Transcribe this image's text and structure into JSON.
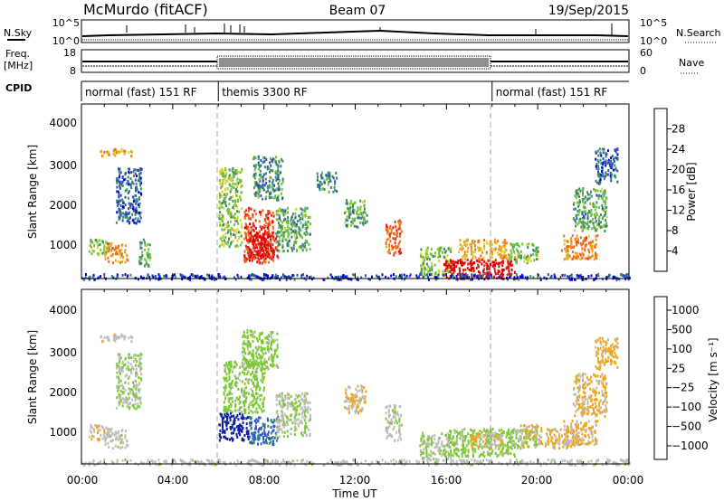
{
  "header": {
    "station": "McMurdo (fitACF)",
    "beam": "Beam 07",
    "date": "19/Sep/2015"
  },
  "summary_panel": {
    "nsky_label": "N.Sky",
    "nsky_ticks": [
      "10^5",
      "10^0"
    ],
    "nsearch_label": "N.Search",
    "nsearch_ticks": [
      "10^5",
      "10^0"
    ],
    "freq_label": "Freq.",
    "freq_unit": "[MHz]",
    "freq_ticks": [
      "18",
      "8"
    ],
    "nave_label": "Nave",
    "nave_ticks": [
      "60",
      "0"
    ],
    "cpid_label": "CPID",
    "cpid_segments": [
      {
        "label": "normal (fast) 151 RF",
        "start_hour": 0,
        "end_hour": 6
      },
      {
        "label": "themis 3300 RF",
        "start_hour": 6,
        "end_hour": 18
      },
      {
        "label": "normal (fast) 151 RF",
        "start_hour": 18,
        "end_hour": 24
      }
    ]
  },
  "axes": {
    "ylabel": "Slant Range [km]",
    "yticks": [
      "1000",
      "2000",
      "3000",
      "4000"
    ],
    "xlabel": "Time UT",
    "xticks": [
      "00:00",
      "04:00",
      "08:00",
      "12:00",
      "16:00",
      "20:00",
      "00:00"
    ]
  },
  "power_colorbar": {
    "label": "Power [dB]",
    "ticks": [
      "4",
      "8",
      "12",
      "16",
      "20",
      "24",
      "28"
    ],
    "colors": [
      "#0000e6",
      "#2b50b5",
      "#3c8a6e",
      "#6fc23a",
      "#d9d62a",
      "#f0a020",
      "#f06a14",
      "#e8281c",
      "#dd0000"
    ]
  },
  "velocity_colorbar": {
    "label": "Velocity [m s⁻¹]",
    "ticks": [
      "1000",
      "500",
      "100",
      "25",
      "−25",
      "−100",
      "−500",
      "−1000"
    ],
    "colors": [
      "#0a1fa0",
      "#2d56c0",
      "#3a8a6a",
      "#7cc832",
      "#bdbdbd",
      "#f0a418",
      "#f06a14",
      "#e82818",
      "#d40000"
    ]
  },
  "chart_data": [
    {
      "type": "heatmap",
      "title": "Power",
      "xlabel": "Time UT",
      "ylabel": "Slant Range [km]",
      "xlim": [
        0,
        24
      ],
      "ylim": [
        180,
        4600
      ],
      "colorbar_range": [
        0,
        30
      ],
      "regions": [
        {
          "t0": 0.8,
          "t1": 2.2,
          "r0": 3300,
          "r1": 3500,
          "value": 18
        },
        {
          "t0": 0.3,
          "t1": 1.2,
          "r0": 800,
          "r1": 1200,
          "value": 12
        },
        {
          "t0": 1.0,
          "t1": 2.0,
          "r0": 600,
          "r1": 1100,
          "value": 20
        },
        {
          "t0": 1.5,
          "t1": 2.6,
          "r0": 1600,
          "r1": 3000,
          "value": 6
        },
        {
          "t0": 2.5,
          "t1": 3.0,
          "r0": 500,
          "r1": 1200,
          "value": 10
        },
        {
          "t0": 6.0,
          "t1": 7.0,
          "r0": 1000,
          "r1": 3000,
          "value": 12
        },
        {
          "t0": 7.1,
          "t1": 8.4,
          "r0": 600,
          "r1": 2000,
          "value": 24
        },
        {
          "t0": 7.3,
          "t1": 8.6,
          "r0": 700,
          "r1": 1400,
          "value": 28
        },
        {
          "t0": 7.5,
          "t1": 8.8,
          "r0": 2200,
          "r1": 3300,
          "value": 8
        },
        {
          "t0": 8.5,
          "t1": 10.0,
          "r0": 900,
          "r1": 2000,
          "value": 10
        },
        {
          "t0": 10.3,
          "t1": 11.2,
          "r0": 2400,
          "r1": 2900,
          "value": 8
        },
        {
          "t0": 11.5,
          "t1": 12.5,
          "r0": 1500,
          "r1": 2200,
          "value": 10
        },
        {
          "t0": 13.3,
          "t1": 14.0,
          "r0": 800,
          "r1": 1700,
          "value": 22
        },
        {
          "t0": 14.8,
          "t1": 16.2,
          "r0": 300,
          "r1": 1000,
          "value": 12
        },
        {
          "t0": 15.8,
          "t1": 19.0,
          "r0": 200,
          "r1": 700,
          "value": 28
        },
        {
          "t0": 16.5,
          "t1": 18.7,
          "r0": 700,
          "r1": 1200,
          "value": 18
        },
        {
          "t0": 18.7,
          "t1": 20.0,
          "r0": 600,
          "r1": 1100,
          "value": 12
        },
        {
          "t0": 21.0,
          "t1": 22.6,
          "r0": 700,
          "r1": 1300,
          "value": 20
        },
        {
          "t0": 21.5,
          "t1": 23.0,
          "r0": 1400,
          "r1": 2500,
          "value": 10
        },
        {
          "t0": 22.5,
          "t1": 23.5,
          "r0": 2600,
          "r1": 3500,
          "value": 6
        },
        {
          "t0": 0.0,
          "t1": 24.0,
          "r0": 180,
          "r1": 320,
          "value": 4
        }
      ]
    },
    {
      "type": "heatmap",
      "title": "Velocity",
      "xlabel": "Time UT",
      "ylabel": "Slant Range [km]",
      "xlim": [
        0,
        24
      ],
      "ylim": [
        180,
        4600
      ],
      "colorbar_range": [
        1000,
        -1000
      ],
      "regions": [
        {
          "t0": 0.8,
          "t1": 2.2,
          "r0": 3300,
          "r1": 3500,
          "value": 0
        },
        {
          "t0": 0.3,
          "t1": 1.2,
          "r0": 800,
          "r1": 1200,
          "value": -100
        },
        {
          "t0": 1.0,
          "t1": 2.0,
          "r0": 600,
          "r1": 1100,
          "value": 0
        },
        {
          "t0": 1.5,
          "t1": 2.6,
          "r0": 1600,
          "r1": 3000,
          "value": 100
        },
        {
          "t0": 6.0,
          "t1": 7.3,
          "r0": 800,
          "r1": 1500,
          "value": 900
        },
        {
          "t0": 6.2,
          "t1": 8.0,
          "r0": 1500,
          "r1": 2800,
          "value": 200
        },
        {
          "t0": 7.0,
          "t1": 8.6,
          "r0": 2600,
          "r1": 3600,
          "value": 200
        },
        {
          "t0": 7.3,
          "t1": 8.6,
          "r0": 700,
          "r1": 1400,
          "value": 600
        },
        {
          "t0": 8.5,
          "t1": 10.0,
          "r0": 900,
          "r1": 2000,
          "value": 100
        },
        {
          "t0": 11.5,
          "t1": 12.5,
          "r0": 1500,
          "r1": 2200,
          "value": -100
        },
        {
          "t0": 13.3,
          "t1": 14.0,
          "r0": 800,
          "r1": 1700,
          "value": 50
        },
        {
          "t0": 14.8,
          "t1": 16.2,
          "r0": 300,
          "r1": 1000,
          "value": 100
        },
        {
          "t0": 16.0,
          "t1": 19.0,
          "r0": 400,
          "r1": 1100,
          "value": 200
        },
        {
          "t0": 17.0,
          "t1": 18.5,
          "r0": 600,
          "r1": 1000,
          "value": -100
        },
        {
          "t0": 18.7,
          "t1": 20.0,
          "r0": 600,
          "r1": 1100,
          "value": 150
        },
        {
          "t0": 19.2,
          "t1": 20.2,
          "r0": 700,
          "r1": 1200,
          "value": -120
        },
        {
          "t0": 20.3,
          "t1": 21.8,
          "r0": 600,
          "r1": 1100,
          "value": -150
        },
        {
          "t0": 21.0,
          "t1": 22.6,
          "r0": 700,
          "r1": 1300,
          "value": -120
        },
        {
          "t0": 21.5,
          "t1": 23.0,
          "r0": 1400,
          "r1": 2500,
          "value": -150
        },
        {
          "t0": 22.5,
          "t1": 23.5,
          "r0": 2600,
          "r1": 3400,
          "value": -200
        },
        {
          "t0": 0.0,
          "t1": 24.0,
          "r0": 180,
          "r1": 320,
          "value": 10
        }
      ]
    }
  ]
}
